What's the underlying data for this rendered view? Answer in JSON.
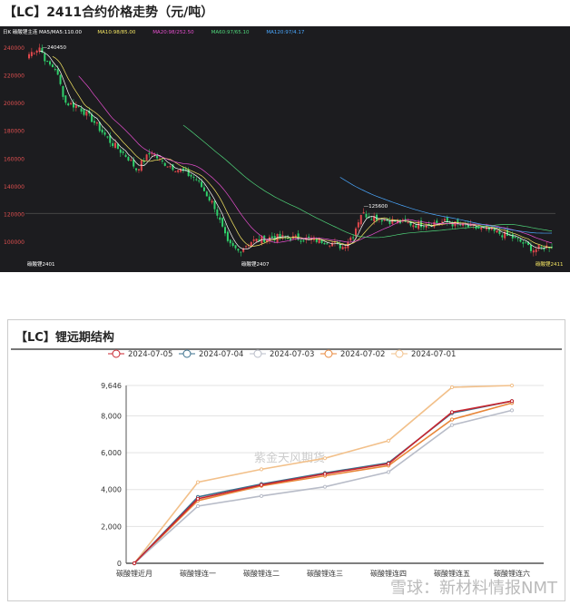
{
  "title": "【LC】2411合约价格走势（元/吨）",
  "kline": {
    "legend": [
      "日K 碳酸锂主连",
      "MA5/MA5:110.00",
      "MA10:98/85.00",
      "MA20:98/252.50",
      "MA60:97/65.10",
      "MA120:97/4.17"
    ],
    "legend_colors": [
      "#ffffff",
      "#ffffff",
      "#f5e663",
      "#e84fd0",
      "#4fd67a",
      "#4aa8ff"
    ],
    "y_ticks": [
      240000,
      220000,
      200000,
      180000,
      160000,
      140000,
      120000,
      100000
    ],
    "ylim": [
      90000,
      250000
    ],
    "markers": [
      "240450",
      "125600"
    ],
    "contract_labels": [
      "碳酸锂2401",
      "碳酸锂2407",
      "碳酸锂2411"
    ],
    "price_path": [
      [
        0,
        235000
      ],
      [
        4,
        240000
      ],
      [
        7,
        228000
      ],
      [
        10,
        225000
      ],
      [
        14,
        200000
      ],
      [
        19,
        197000
      ],
      [
        24,
        188000
      ],
      [
        31,
        172000
      ],
      [
        38,
        160000
      ],
      [
        41,
        152000
      ],
      [
        47,
        165000
      ],
      [
        50,
        158000
      ],
      [
        59,
        150000
      ],
      [
        64,
        145000
      ],
      [
        71,
        125000
      ],
      [
        76,
        98000
      ],
      [
        80,
        93000
      ],
      [
        85,
        100000
      ],
      [
        93,
        103000
      ],
      [
        104,
        102000
      ],
      [
        114,
        100000
      ],
      [
        120,
        96000
      ],
      [
        124,
        105000
      ],
      [
        127,
        120000
      ],
      [
        131,
        118000
      ],
      [
        138,
        115000
      ],
      [
        148,
        112000
      ],
      [
        159,
        114000
      ],
      [
        166,
        111000
      ],
      [
        176,
        108000
      ],
      [
        186,
        102000
      ],
      [
        193,
        94000
      ],
      [
        200,
        97000
      ]
    ],
    "up_color": "#e0474c",
    "down_color": "#2fd16b"
  },
  "panel": {
    "title": "【LC】锂远期结构",
    "watermark_center": "紫金天风期货",
    "watermark": "雪球：新材料情报NMT"
  },
  "chart_data": {
    "type": "line",
    "title": "【LC】锂远期结构",
    "categories": [
      "碳酸锂近月",
      "碳酸锂连一",
      "碳酸锂连二",
      "碳酸锂连三",
      "碳酸锂连四",
      "碳酸锂连五",
      "碳酸锂连六"
    ],
    "y_ticks": [
      "0",
      "2,000",
      "4,000",
      "6,000",
      "8,000",
      "9,646"
    ],
    "ylim": [
      0,
      9646
    ],
    "legend_position": "top",
    "grid": true,
    "series": [
      {
        "name": "2024-07-05",
        "color": "#c8252f",
        "values": [
          0,
          3500,
          4250,
          4850,
          5400,
          8200,
          8800
        ]
      },
      {
        "name": "2024-07-04",
        "color": "#3a6f8c",
        "values": [
          0,
          3600,
          4300,
          4900,
          5450,
          8150,
          8800
        ]
      },
      {
        "name": "2024-07-03",
        "color": "#b8bcc8",
        "values": [
          0,
          3100,
          3650,
          4150,
          4950,
          7500,
          8300
        ]
      },
      {
        "name": "2024-07-02",
        "color": "#e8873a",
        "values": [
          0,
          3400,
          4200,
          4750,
          5300,
          7800,
          8700
        ]
      },
      {
        "name": "2024-07-01",
        "color": "#f2c08a",
        "values": [
          0,
          4400,
          5100,
          5700,
          6650,
          9550,
          9646
        ]
      }
    ]
  }
}
